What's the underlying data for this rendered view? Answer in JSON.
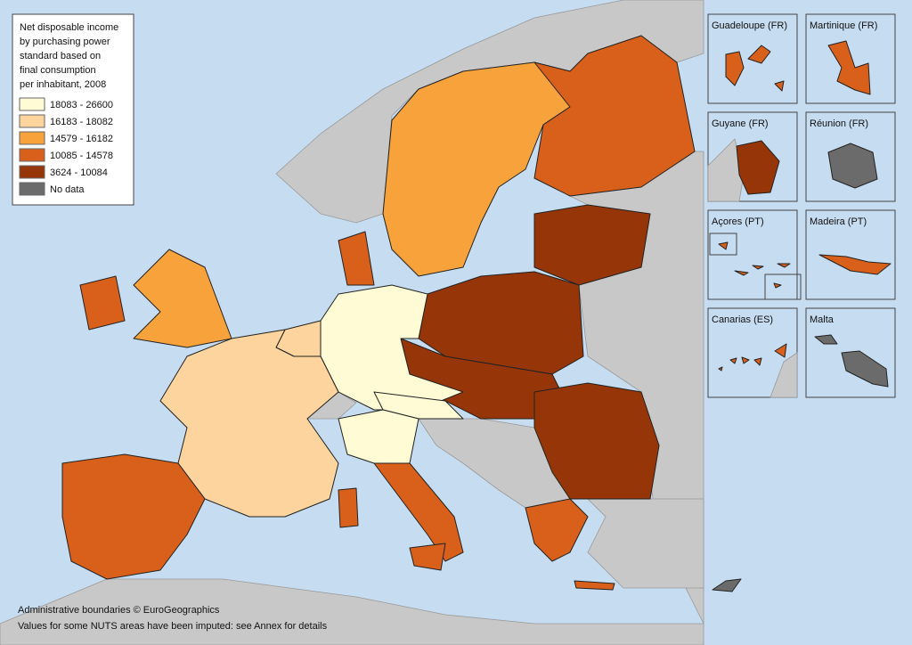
{
  "legend": {
    "title": [
      "Net disposable income",
      "by purchasing power",
      "standard based on",
      "final consumption",
      "per inhabitant, 2008"
    ],
    "items": [
      {
        "label": "18083 - 26600",
        "color": "#fffbd5"
      },
      {
        "label": "16183 - 18082",
        "color": "#fdd49e"
      },
      {
        "label": "14579 - 16182",
        "color": "#f7a23a"
      },
      {
        "label": "10085 - 14578",
        "color": "#d9601a"
      },
      {
        "label": "3624 - 10084",
        "color": "#963508"
      },
      {
        "label": "No data",
        "color": "#6b6b6b"
      }
    ]
  },
  "insets": [
    {
      "label": "Guadeloupe (FR)"
    },
    {
      "label": "Martinique (FR)"
    },
    {
      "label": "Guyane (FR)"
    },
    {
      "label": "Réunion (FR)"
    },
    {
      "label": "Açores (PT)"
    },
    {
      "label": "Madeira (PT)"
    },
    {
      "label": "Canarias (ES)"
    },
    {
      "label": "Malta"
    }
  ],
  "footer": [
    "Administrative boundaries © EuroGeographics",
    "Values for some NUTS areas have been imputed: see Annex for details"
  ]
}
